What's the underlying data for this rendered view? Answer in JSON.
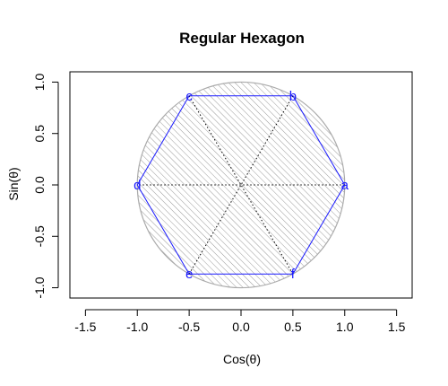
{
  "chart_data": {
    "type": "scatter",
    "title": "Regular Hexagon",
    "xlabel": "Cos(θ)",
    "ylabel": "Sin(θ)",
    "xlim": [
      -1.65,
      1.65
    ],
    "ylim": [
      -1.1,
      1.1
    ],
    "xticks": [
      -1.5,
      -1.0,
      -0.5,
      0.0,
      0.5,
      1.0,
      1.5
    ],
    "xtick_labels": [
      "-1.5",
      "-1.0",
      "-0.5",
      "0.0",
      "0.5",
      "1.0",
      "1.5"
    ],
    "yticks": [
      -1.0,
      -0.5,
      0.0,
      0.5,
      1.0
    ],
    "ytick_labels": [
      "-1.0",
      "-0.5",
      "0.0",
      "0.5",
      "1.0"
    ],
    "grid": false,
    "circle": {
      "center": [
        0,
        0
      ],
      "radius": 1,
      "fill": "hatched",
      "color": "#aaaaaa"
    },
    "vertices": [
      {
        "label": "a",
        "x": 1.0,
        "y": 0.0
      },
      {
        "label": "b",
        "x": 0.5,
        "y": 0.866
      },
      {
        "label": "c",
        "x": -0.5,
        "y": 0.866
      },
      {
        "label": "d",
        "x": -1.0,
        "y": 0.0
      },
      {
        "label": "e",
        "x": -0.5,
        "y": -0.866
      },
      {
        "label": "f",
        "x": 0.5,
        "y": -0.866
      }
    ],
    "hexagon_color": "#1a1aff",
    "diagonal_color": "#000000",
    "diagonals": [
      [
        "a",
        "d"
      ],
      [
        "b",
        "e"
      ],
      [
        "c",
        "f"
      ]
    ]
  }
}
